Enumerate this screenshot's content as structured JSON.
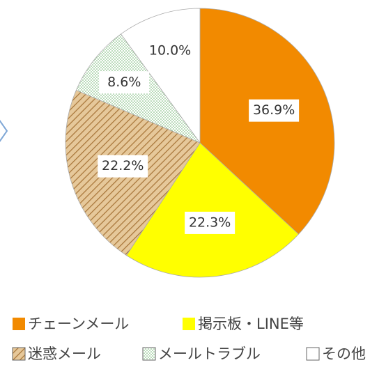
{
  "chart_data": {
    "type": "pie",
    "series": [
      {
        "name": "チェーンメール",
        "color": "#f28a00",
        "values": [
          36.9
        ],
        "value_labels": [
          "36.9%"
        ]
      },
      {
        "name": "掲示板・LINE等",
        "color": "#ffff00",
        "values": [
          22.3
        ],
        "value_labels": [
          "22.3%"
        ]
      },
      {
        "name": "迷惑メール",
        "color": "#d8b27a",
        "pattern": "hatch",
        "values": [
          22.2
        ],
        "value_labels": [
          "22.2%"
        ]
      },
      {
        "name": "メールトラブル",
        "color": "#ffffff",
        "pattern": "dots",
        "values": [
          8.6
        ],
        "value_labels": [
          "8.6%"
        ]
      },
      {
        "name": "その他",
        "color": "#ffffff",
        "values": [
          10.0
        ],
        "value_labels": [
          "10.0%"
        ]
      }
    ]
  }
}
